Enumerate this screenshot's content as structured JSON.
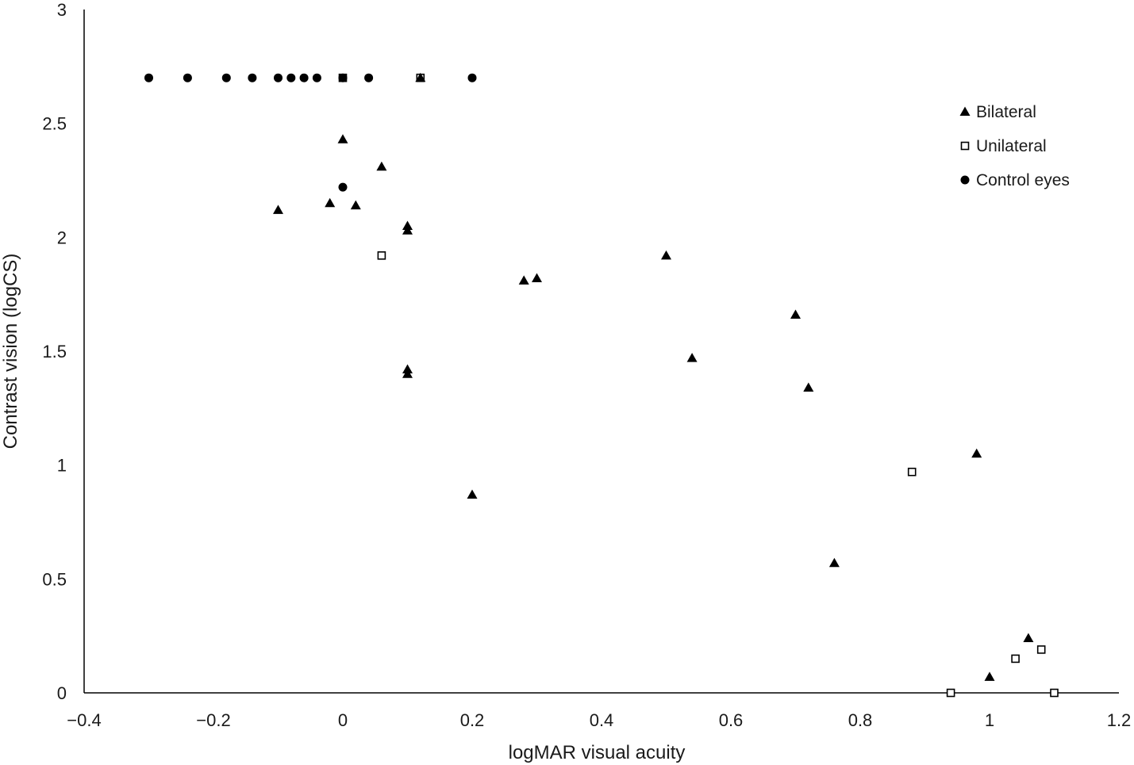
{
  "chart_data": {
    "type": "scatter",
    "title": "",
    "xlabel": "logMAR visual acuity",
    "ylabel": "Contrast vision (logCS)",
    "xlim": [
      -0.4,
      1.2
    ],
    "ylim": [
      0,
      3
    ],
    "x_ticks": [
      "−0.4",
      "−0.2",
      "0",
      "0.2",
      "0.4",
      "0.6",
      "0.8",
      "1",
      "1.2"
    ],
    "y_ticks": [
      "0",
      "0.5",
      "1",
      "1.5",
      "2",
      "2.5",
      "3"
    ],
    "grid": false,
    "legend_position": "top-right",
    "series": [
      {
        "name": "Bilateral",
        "marker": "triangle",
        "color": "#000000",
        "points": [
          [
            0.0,
            2.43
          ],
          [
            0.06,
            2.31
          ],
          [
            -0.1,
            2.12
          ],
          [
            -0.02,
            2.15
          ],
          [
            0.02,
            2.14
          ],
          [
            0.1,
            2.05
          ],
          [
            0.1,
            2.03
          ],
          [
            0.28,
            1.81
          ],
          [
            0.3,
            1.82
          ],
          [
            0.5,
            1.92
          ],
          [
            0.1,
            1.42
          ],
          [
            0.1,
            1.4
          ],
          [
            0.54,
            1.47
          ],
          [
            0.7,
            1.66
          ],
          [
            0.72,
            1.34
          ],
          [
            0.2,
            0.87
          ],
          [
            0.98,
            1.05
          ],
          [
            0.76,
            0.57
          ],
          [
            1.06,
            0.24
          ],
          [
            1.0,
            0.07
          ],
          [
            0.12,
            2.7
          ]
        ]
      },
      {
        "name": "Unilateral",
        "marker": "open-square",
        "color": "#000000",
        "points": [
          [
            0.06,
            1.92
          ],
          [
            0.88,
            0.97
          ],
          [
            1.04,
            0.15
          ],
          [
            1.08,
            0.19
          ],
          [
            0.94,
            0.0
          ],
          [
            1.1,
            0.0
          ],
          [
            0.12,
            2.7
          ],
          [
            0.0,
            2.7
          ]
        ]
      },
      {
        "name": "Control eyes",
        "marker": "circle",
        "color": "#000000",
        "points": [
          [
            -0.3,
            2.7
          ],
          [
            -0.24,
            2.7
          ],
          [
            -0.18,
            2.7
          ],
          [
            -0.14,
            2.7
          ],
          [
            -0.1,
            2.7
          ],
          [
            -0.08,
            2.7
          ],
          [
            -0.06,
            2.7
          ],
          [
            -0.04,
            2.7
          ],
          [
            0.0,
            2.7
          ],
          [
            0.04,
            2.7
          ],
          [
            0.2,
            2.7
          ],
          [
            0.0,
            2.22
          ]
        ]
      }
    ]
  }
}
